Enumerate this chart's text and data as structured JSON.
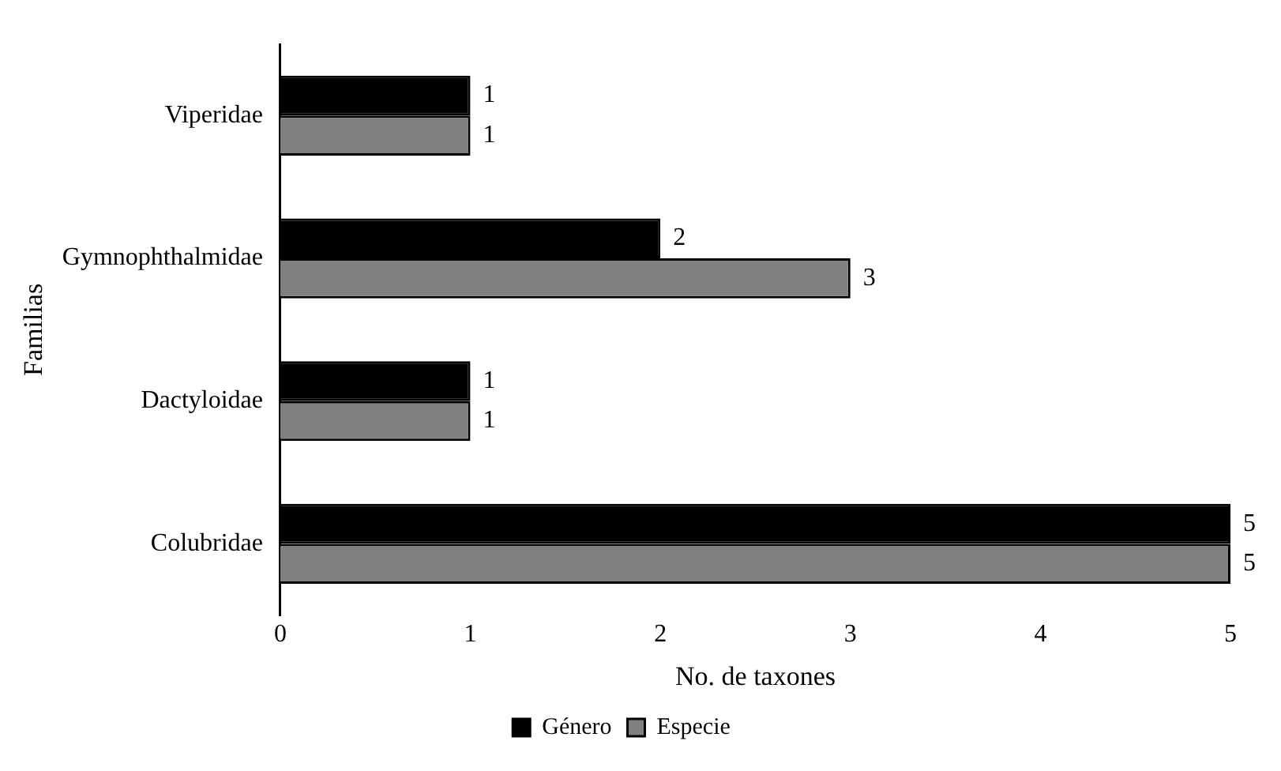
{
  "chart_data": {
    "type": "bar",
    "orientation": "horizontal",
    "categories": [
      "Viperidae",
      "Gymnophthalmidae",
      "Dactyloidae",
      "Colubridae"
    ],
    "series": [
      {
        "name": "Género",
        "color": "#000000",
        "values": [
          1,
          2,
          1,
          5
        ]
      },
      {
        "name": "Especie",
        "color": "#808080",
        "values": [
          1,
          3,
          1,
          5
        ]
      }
    ],
    "xlim": [
      0,
      5
    ],
    "xticks": [
      0,
      1,
      2,
      3,
      4,
      5
    ],
    "xlabel": "No. de taxones",
    "ylabel": "Familias",
    "data_labels": true,
    "legend": "bottom",
    "grid": false
  }
}
